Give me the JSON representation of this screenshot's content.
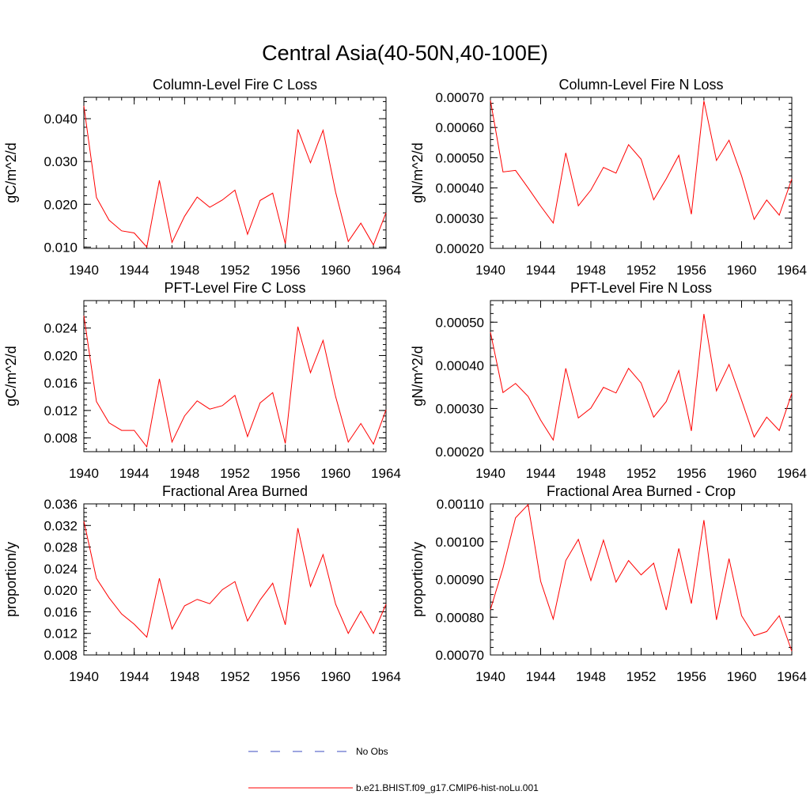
{
  "figure": {
    "title": "Central Asia(40-50N,40-100E)"
  },
  "legend": {
    "entries": [
      {
        "label": "No Obs",
        "color": "#3b4cc0",
        "dash": true
      },
      {
        "label": "b.e21.BHIST.f09_g17.CMIP6-hist-noLu.001",
        "color": "#ff0000",
        "dash": false
      }
    ]
  },
  "chart_data": [
    {
      "type": "line",
      "title": "Column-Level Fire C Loss",
      "ylabel": "gC/m^2/d",
      "xlim": [
        1940,
        1964
      ],
      "ylim": [
        0.0097,
        0.045
      ],
      "xticks": [
        1940,
        1944,
        1948,
        1952,
        1956,
        1960,
        1964
      ],
      "yticks": [
        0.01,
        0.02,
        0.03,
        0.04
      ],
      "ytick_labels": [
        "0.010",
        "0.020",
        "0.030",
        "0.040"
      ],
      "grid": false,
      "x": [
        1940,
        1941,
        1942,
        1943,
        1944,
        1945,
        1946,
        1947,
        1948,
        1949,
        1950,
        1951,
        1952,
        1953,
        1954,
        1955,
        1956,
        1957,
        1958,
        1959,
        1960,
        1961,
        1962,
        1963,
        1964
      ],
      "series": [
        {
          "name": "b.e21.BHIST.f09_g17.CMIP6-hist-noLu.001",
          "color": "#ff0000",
          "values": [
            0.043,
            0.0216,
            0.0163,
            0.0138,
            0.0133,
            0.01,
            0.0256,
            0.0111,
            0.0172,
            0.0217,
            0.0193,
            0.021,
            0.0233,
            0.013,
            0.0209,
            0.0226,
            0.0108,
            0.0375,
            0.0297,
            0.0373,
            0.0228,
            0.0113,
            0.0156,
            0.0105,
            0.018
          ]
        }
      ]
    },
    {
      "type": "line",
      "title": "Column-Level Fire N Loss",
      "ylabel": "gN/m^2/d",
      "xlim": [
        1940,
        1964
      ],
      "ylim": [
        0.0002,
        0.0007
      ],
      "xticks": [
        1940,
        1944,
        1948,
        1952,
        1956,
        1960,
        1964
      ],
      "yticks": [
        0.0002,
        0.0003,
        0.0004,
        0.0005,
        0.0006,
        0.0007
      ],
      "ytick_labels": [
        "0.00020",
        "0.00030",
        "0.00040",
        "0.00050",
        "0.00060",
        "0.00070"
      ],
      "grid": false,
      "x": [
        1940,
        1941,
        1942,
        1943,
        1944,
        1945,
        1946,
        1947,
        1948,
        1949,
        1950,
        1951,
        1952,
        1953,
        1954,
        1955,
        1956,
        1957,
        1958,
        1959,
        1960,
        1961,
        1962,
        1963,
        1964
      ],
      "series": [
        {
          "name": "b.e21.BHIST.f09_g17.CMIP6-hist-noLu.001",
          "color": "#ff0000",
          "values": [
            0.00069,
            0.000453,
            0.000458,
            0.0004,
            0.00034,
            0.000284,
            0.000516,
            0.000341,
            0.000393,
            0.000468,
            0.000449,
            0.000543,
            0.000495,
            0.000361,
            0.00043,
            0.000508,
            0.000313,
            0.000688,
            0.000491,
            0.000558,
            0.00044,
            0.000296,
            0.00036,
            0.00031,
            0.00043
          ]
        }
      ]
    },
    {
      "type": "line",
      "title": "PFT-Level Fire C Loss",
      "ylabel": "gC/m^2/d",
      "xlim": [
        1940,
        1964
      ],
      "ylim": [
        0.006,
        0.028
      ],
      "xticks": [
        1940,
        1944,
        1948,
        1952,
        1956,
        1960,
        1964
      ],
      "yticks": [
        0.008,
        0.012,
        0.016,
        0.02,
        0.024
      ],
      "ytick_labels": [
        "0.008",
        "0.012",
        "0.016",
        "0.020",
        "0.024"
      ],
      "grid": false,
      "x": [
        1940,
        1941,
        1942,
        1943,
        1944,
        1945,
        1946,
        1947,
        1948,
        1949,
        1950,
        1951,
        1952,
        1953,
        1954,
        1955,
        1956,
        1957,
        1958,
        1959,
        1960,
        1961,
        1962,
        1963,
        1964
      ],
      "series": [
        {
          "name": "b.e21.BHIST.f09_g17.CMIP6-hist-noLu.001",
          "color": "#ff0000",
          "values": [
            0.0258,
            0.0133,
            0.0102,
            0.0091,
            0.0091,
            0.0067,
            0.0166,
            0.0074,
            0.0112,
            0.0134,
            0.0122,
            0.0127,
            0.0142,
            0.0082,
            0.0131,
            0.0146,
            0.0072,
            0.0242,
            0.0175,
            0.0222,
            0.014,
            0.0074,
            0.0101,
            0.0071,
            0.0121
          ]
        }
      ]
    },
    {
      "type": "line",
      "title": "PFT-Level Fire N Loss",
      "ylabel": "gN/m^2/d",
      "xlim": [
        1940,
        1964
      ],
      "ylim": [
        0.0002,
        0.00055
      ],
      "xticks": [
        1940,
        1944,
        1948,
        1952,
        1956,
        1960,
        1964
      ],
      "yticks": [
        0.0002,
        0.0003,
        0.0004,
        0.0005
      ],
      "ytick_labels": [
        "0.00020",
        "0.00030",
        "0.00040",
        "0.00050"
      ],
      "grid": false,
      "x": [
        1940,
        1941,
        1942,
        1943,
        1944,
        1945,
        1946,
        1947,
        1948,
        1949,
        1950,
        1951,
        1952,
        1953,
        1954,
        1955,
        1956,
        1957,
        1958,
        1959,
        1960,
        1961,
        1962,
        1963,
        1964
      ],
      "series": [
        {
          "name": "b.e21.BHIST.f09_g17.CMIP6-hist-noLu.001",
          "color": "#ff0000",
          "values": [
            0.000477,
            0.000337,
            0.000358,
            0.000328,
            0.000273,
            0.000227,
            0.000393,
            0.000278,
            0.000301,
            0.000349,
            0.000336,
            0.000393,
            0.000359,
            0.00028,
            0.000316,
            0.000388,
            0.000248,
            0.000519,
            0.000341,
            0.000402,
            0.000319,
            0.000234,
            0.00028,
            0.000249,
            0.000335
          ]
        }
      ]
    },
    {
      "type": "line",
      "title": "Fractional Area Burned",
      "ylabel": "proportion/y",
      "xlim": [
        1940,
        1964
      ],
      "ylim": [
        0.008,
        0.036
      ],
      "xticks": [
        1940,
        1944,
        1948,
        1952,
        1956,
        1960,
        1964
      ],
      "yticks": [
        0.008,
        0.012,
        0.016,
        0.02,
        0.024,
        0.028,
        0.032,
        0.036
      ],
      "ytick_labels": [
        "0.008",
        "0.012",
        "0.016",
        "0.020",
        "0.024",
        "0.028",
        "0.032",
        "0.036"
      ],
      "grid": false,
      "x": [
        1940,
        1941,
        1942,
        1943,
        1944,
        1945,
        1946,
        1947,
        1948,
        1949,
        1950,
        1951,
        1952,
        1953,
        1954,
        1955,
        1956,
        1957,
        1958,
        1959,
        1960,
        1961,
        1962,
        1963,
        1964
      ],
      "series": [
        {
          "name": "b.e21.BHIST.f09_g17.CMIP6-hist-noLu.001",
          "color": "#ff0000",
          "values": [
            0.0328,
            0.0222,
            0.0186,
            0.0156,
            0.0137,
            0.0113,
            0.0222,
            0.0128,
            0.0171,
            0.0183,
            0.0175,
            0.0201,
            0.0216,
            0.0143,
            0.0182,
            0.0213,
            0.0136,
            0.0315,
            0.0207,
            0.0266,
            0.0174,
            0.012,
            0.0161,
            0.012,
            0.0174
          ]
        }
      ]
    },
    {
      "type": "line",
      "title": "Fractional Area Burned - Crop",
      "ylabel": "proportion/y",
      "xlim": [
        1940,
        1964
      ],
      "ylim": [
        0.0007,
        0.0011
      ],
      "xticks": [
        1940,
        1944,
        1948,
        1952,
        1956,
        1960,
        1964
      ],
      "yticks": [
        0.0007,
        0.0008,
        0.0009,
        0.001,
        0.0011
      ],
      "ytick_labels": [
        "0.00070",
        "0.00080",
        "0.00090",
        "0.00100",
        "0.00110"
      ],
      "grid": false,
      "x": [
        1940,
        1941,
        1942,
        1943,
        1944,
        1945,
        1946,
        1947,
        1948,
        1949,
        1950,
        1951,
        1952,
        1953,
        1954,
        1955,
        1956,
        1957,
        1958,
        1959,
        1960,
        1961,
        1962,
        1963,
        1964
      ],
      "series": [
        {
          "name": "b.e21.BHIST.f09_g17.CMIP6-hist-noLu.001",
          "color": "#ff0000",
          "values": [
            0.00082,
            0.00093,
            0.001063,
            0.001098,
            0.000895,
            0.000795,
            0.00095,
            0.001006,
            0.000897,
            0.001004,
            0.000893,
            0.00095,
            0.000912,
            0.000943,
            0.000819,
            0.000982,
            0.000836,
            0.001057,
            0.000793,
            0.000955,
            0.000804,
            0.000751,
            0.000762,
            0.000804,
            0.00071
          ]
        }
      ]
    }
  ]
}
